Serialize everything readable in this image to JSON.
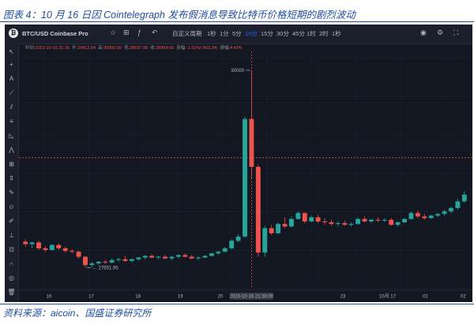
{
  "figure": {
    "caption": "图表 4：10 月 16 日因 Cointelegraph 发布假消息导致比特币价格短期的剧烈波动",
    "source": "资料来源：aicoin、国盛证券研究所"
  },
  "toolbar": {
    "symbol": "BTC/USD Coinbase Pro",
    "cycle_label": "自定义周期",
    "intervals": [
      "1秒",
      "1分",
      "5分",
      "10分",
      "15分",
      "30分",
      "45分",
      "1时",
      "2时",
      "1秒"
    ],
    "active_interval": "10分",
    "icons": [
      "logo-icon",
      "star-icon",
      "compare-icon",
      "indicator-icon",
      "undo-icon",
      "camera-icon",
      "settings-icon",
      "fullscreen-icon"
    ]
  },
  "ohlc": {
    "time_label": "时间:",
    "time_value": "2023-10-16 21:30",
    "open_label": "开:",
    "open_value": "29412.84",
    "high_label": "高:",
    "high_value": "30000.00",
    "low_label": "低:",
    "low_value": "28697.99",
    "close_label": "收:",
    "close_value": "28854.65",
    "change_label": "涨幅:",
    "change_value": "-1.91%(-563.34)",
    "amplitude_label": "振幅:",
    "amplitude_value": "4.43%"
  },
  "chart_data": {
    "type": "candlestick",
    "title": "",
    "x_tick_labels": [
      "16",
      "17",
      "18",
      "19",
      "20",
      "2023-10-16 21:30:00",
      "23",
      "10月 17",
      "01",
      "02"
    ],
    "crosshair_time": "2023-10-16 21:30:00",
    "high_marker": "30000",
    "low_marker": "27651.95",
    "ylim": [
      27400,
      30150
    ],
    "colors": {
      "up": "#26a69a",
      "down": "#ef5350",
      "crosshair": "#ef5350"
    },
    "candles": [
      {
        "o": 27960,
        "h": 27990,
        "l": 27900,
        "c": 27930
      },
      {
        "o": 27930,
        "h": 27960,
        "l": 27880,
        "c": 27950
      },
      {
        "o": 27950,
        "h": 27970,
        "l": 27860,
        "c": 27880
      },
      {
        "o": 27880,
        "h": 27900,
        "l": 27840,
        "c": 27860
      },
      {
        "o": 27860,
        "h": 27930,
        "l": 27850,
        "c": 27920
      },
      {
        "o": 27920,
        "h": 27940,
        "l": 27860,
        "c": 27880
      },
      {
        "o": 27880,
        "h": 27900,
        "l": 27830,
        "c": 27850
      },
      {
        "o": 27850,
        "h": 27870,
        "l": 27820,
        "c": 27840
      },
      {
        "o": 27840,
        "h": 27850,
        "l": 27760,
        "c": 27780
      },
      {
        "o": 27780,
        "h": 27790,
        "l": 27650,
        "c": 27680
      },
      {
        "o": 27680,
        "h": 27720,
        "l": 27650,
        "c": 27700
      },
      {
        "o": 27700,
        "h": 27730,
        "l": 27680,
        "c": 27720
      },
      {
        "o": 27720,
        "h": 27740,
        "l": 27690,
        "c": 27710
      },
      {
        "o": 27710,
        "h": 27760,
        "l": 27700,
        "c": 27740
      },
      {
        "o": 27740,
        "h": 27770,
        "l": 27720,
        "c": 27750
      },
      {
        "o": 27750,
        "h": 27790,
        "l": 27720,
        "c": 27730
      },
      {
        "o": 27730,
        "h": 27760,
        "l": 27710,
        "c": 27750
      },
      {
        "o": 27750,
        "h": 27780,
        "l": 27730,
        "c": 27770
      },
      {
        "o": 27770,
        "h": 27800,
        "l": 27750,
        "c": 27790
      },
      {
        "o": 27790,
        "h": 27810,
        "l": 27760,
        "c": 27770
      },
      {
        "o": 27770,
        "h": 27790,
        "l": 27750,
        "c": 27780
      },
      {
        "o": 27780,
        "h": 27800,
        "l": 27750,
        "c": 27760
      },
      {
        "o": 27760,
        "h": 27790,
        "l": 27740,
        "c": 27780
      },
      {
        "o": 27780,
        "h": 27810,
        "l": 27760,
        "c": 27800
      },
      {
        "o": 27800,
        "h": 27820,
        "l": 27770,
        "c": 27780
      },
      {
        "o": 27780,
        "h": 27800,
        "l": 27750,
        "c": 27760
      },
      {
        "o": 27760,
        "h": 27790,
        "l": 27740,
        "c": 27770
      },
      {
        "o": 27770,
        "h": 27800,
        "l": 27760,
        "c": 27790
      },
      {
        "o": 27790,
        "h": 27830,
        "l": 27780,
        "c": 27820
      },
      {
        "o": 27820,
        "h": 27850,
        "l": 27800,
        "c": 27840
      },
      {
        "o": 27840,
        "h": 27900,
        "l": 27830,
        "c": 27880
      },
      {
        "o": 27880,
        "h": 27990,
        "l": 27870,
        "c": 27970
      },
      {
        "o": 27970,
        "h": 28050,
        "l": 27950,
        "c": 28020
      },
      {
        "o": 28020,
        "h": 29450,
        "l": 28000,
        "c": 29420
      },
      {
        "o": 29420,
        "h": 30000,
        "l": 28700,
        "c": 28850
      },
      {
        "o": 28850,
        "h": 28880,
        "l": 27780,
        "c": 27830
      },
      {
        "o": 27830,
        "h": 28150,
        "l": 27780,
        "c": 28120
      },
      {
        "o": 28120,
        "h": 28160,
        "l": 28040,
        "c": 28060
      },
      {
        "o": 28060,
        "h": 28190,
        "l": 28050,
        "c": 28170
      },
      {
        "o": 28170,
        "h": 28250,
        "l": 28120,
        "c": 28140
      },
      {
        "o": 28140,
        "h": 28260,
        "l": 28130,
        "c": 28230
      },
      {
        "o": 28230,
        "h": 28320,
        "l": 28220,
        "c": 28300
      },
      {
        "o": 28300,
        "h": 28310,
        "l": 28180,
        "c": 28200
      },
      {
        "o": 28200,
        "h": 28270,
        "l": 28190,
        "c": 28250
      },
      {
        "o": 28250,
        "h": 28280,
        "l": 28180,
        "c": 28200
      },
      {
        "o": 28200,
        "h": 28240,
        "l": 28160,
        "c": 28190
      },
      {
        "o": 28190,
        "h": 28220,
        "l": 28150,
        "c": 28170
      },
      {
        "o": 28170,
        "h": 28200,
        "l": 28140,
        "c": 28180
      },
      {
        "o": 28180,
        "h": 28210,
        "l": 28150,
        "c": 28160
      },
      {
        "o": 28160,
        "h": 28190,
        "l": 28140,
        "c": 28170
      },
      {
        "o": 28170,
        "h": 28250,
        "l": 28160,
        "c": 28230
      },
      {
        "o": 28230,
        "h": 28260,
        "l": 28190,
        "c": 28200
      },
      {
        "o": 28200,
        "h": 28230,
        "l": 28180,
        "c": 28220
      },
      {
        "o": 28220,
        "h": 28250,
        "l": 28190,
        "c": 28210
      },
      {
        "o": 28210,
        "h": 28240,
        "l": 28190,
        "c": 28220
      },
      {
        "o": 28220,
        "h": 28240,
        "l": 28150,
        "c": 28160
      },
      {
        "o": 28160,
        "h": 28200,
        "l": 28140,
        "c": 28190
      },
      {
        "o": 28190,
        "h": 28240,
        "l": 28180,
        "c": 28230
      },
      {
        "o": 28230,
        "h": 28320,
        "l": 28220,
        "c": 28300
      },
      {
        "o": 28300,
        "h": 28330,
        "l": 28240,
        "c": 28260
      },
      {
        "o": 28260,
        "h": 28290,
        "l": 28220,
        "c": 28240
      },
      {
        "o": 28240,
        "h": 28280,
        "l": 28230,
        "c": 28270
      },
      {
        "o": 28270,
        "h": 28300,
        "l": 28250,
        "c": 28290
      },
      {
        "o": 28290,
        "h": 28340,
        "l": 28270,
        "c": 28320
      },
      {
        "o": 28320,
        "h": 28380,
        "l": 28300,
        "c": 28360
      },
      {
        "o": 28360,
        "h": 28470,
        "l": 28340,
        "c": 28440
      },
      {
        "o": 28440,
        "h": 28560,
        "l": 28420,
        "c": 28520
      }
    ]
  }
}
